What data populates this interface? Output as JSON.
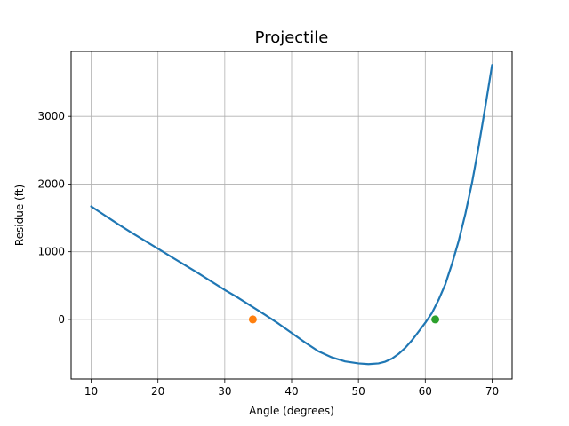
{
  "chart_data": {
    "type": "line",
    "title": "Projectile",
    "xlabel": "Angle (degrees)",
    "ylabel": "Residue (ft)",
    "xlim": [
      7.0,
      73.0
    ],
    "ylim": [
      -880,
      3960
    ],
    "xticks": [
      10,
      20,
      30,
      40,
      50,
      60,
      70
    ],
    "yticks": [
      0,
      1000,
      2000,
      3000
    ],
    "grid": true,
    "series": [
      {
        "color": "#1f77b4",
        "x": [
          10,
          12,
          14,
          16,
          18,
          20,
          22,
          24,
          26,
          28,
          30,
          32,
          34,
          36,
          38,
          40,
          42,
          44,
          46,
          48,
          50,
          51.5,
          53,
          54,
          55,
          56,
          57,
          58,
          59,
          60,
          61,
          62,
          63,
          64,
          65,
          66,
          67,
          68,
          69,
          70
        ],
        "y": [
          1670,
          1540,
          1410,
          1285,
          1165,
          1045,
          925,
          805,
          685,
          560,
          435,
          320,
          195,
          70,
          -60,
          -200,
          -340,
          -470,
          -560,
          -620,
          -650,
          -660,
          -650,
          -625,
          -580,
          -510,
          -420,
          -310,
          -180,
          -50,
          95,
          290,
          520,
          820,
          1160,
          1560,
          2020,
          2560,
          3150,
          3760
        ]
      }
    ],
    "markers": [
      {
        "x": 34.2,
        "y": 0,
        "color": "#ff7f0e"
      },
      {
        "x": 61.5,
        "y": 0,
        "color": "#2ca02c"
      }
    ]
  }
}
